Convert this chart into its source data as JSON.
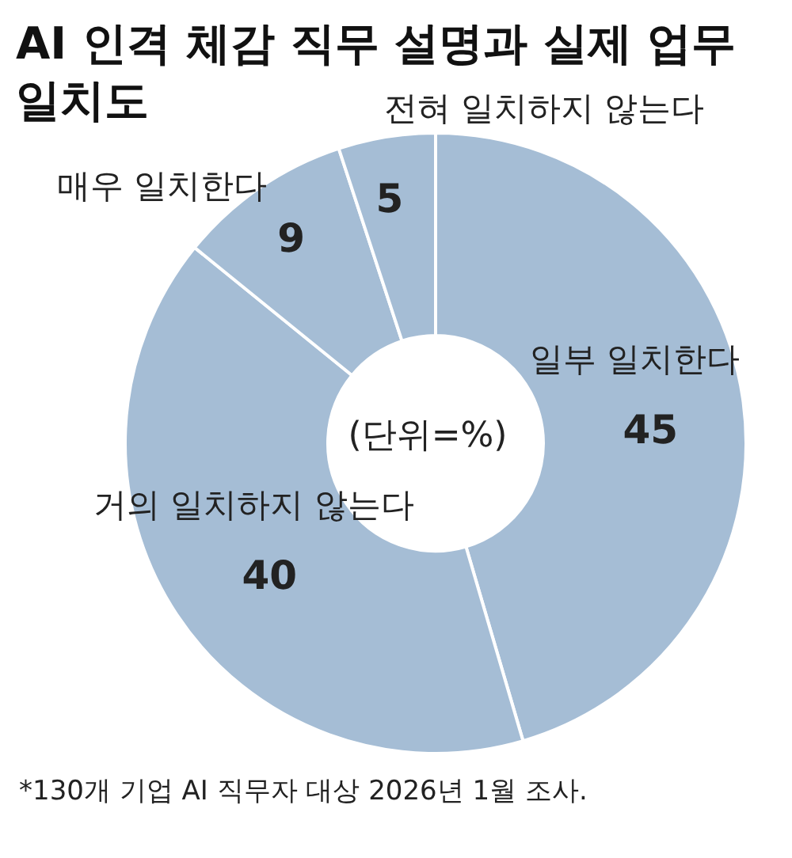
{
  "chart_data": {
    "type": "donut",
    "title": "AI 인격 체감 직무 설명과 실제 업무 일치도",
    "categories": [
      "일부 일치한다",
      "거의 일치하지 않는다",
      "매우 일치한다",
      "전혀 일치하지 않는다"
    ],
    "values": [
      45,
      40,
      9,
      5
    ],
    "colors": [
      "#a5bdd5",
      "#a5bdd5",
      "#a5bdd5",
      "#a5bdd5"
    ],
    "data_labels": true,
    "annotations": [
      "(단위=%)",
      "*130개 기업 AI 직무자 대상 2026년 1월 조사."
    ]
  }
}
